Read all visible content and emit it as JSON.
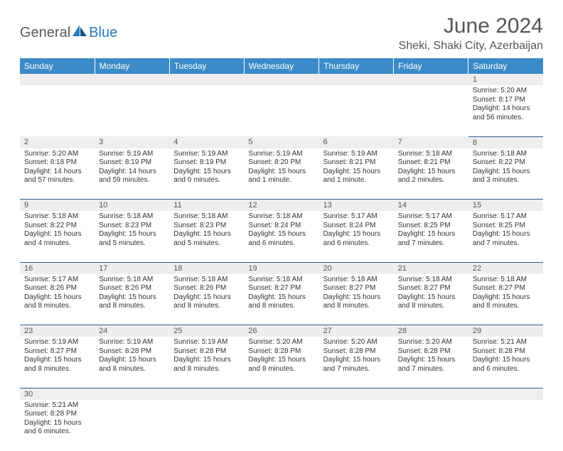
{
  "brand": {
    "part1": "General",
    "part2": "Blue"
  },
  "title": "June 2024",
  "location": "Sheki, Shaki City, Azerbaijan",
  "colors": {
    "header_bg": "#3b8bc8",
    "header_text": "#ffffff",
    "daynum_bg": "#eeeeee",
    "cell_border": "#2a5c8a",
    "brand_gray": "#5a5a5a",
    "brand_blue": "#2a7ab9"
  },
  "weekdays": [
    "Sunday",
    "Monday",
    "Tuesday",
    "Wednesday",
    "Thursday",
    "Friday",
    "Saturday"
  ],
  "weeks": [
    [
      null,
      null,
      null,
      null,
      null,
      null,
      {
        "n": "1",
        "sr": "Sunrise: 5:20 AM",
        "ss": "Sunset: 8:17 PM",
        "dl": "Daylight: 14 hours and 56 minutes."
      }
    ],
    [
      {
        "n": "2",
        "sr": "Sunrise: 5:20 AM",
        "ss": "Sunset: 8:18 PM",
        "dl": "Daylight: 14 hours and 57 minutes."
      },
      {
        "n": "3",
        "sr": "Sunrise: 5:19 AM",
        "ss": "Sunset: 8:19 PM",
        "dl": "Daylight: 14 hours and 59 minutes."
      },
      {
        "n": "4",
        "sr": "Sunrise: 5:19 AM",
        "ss": "Sunset: 8:19 PM",
        "dl": "Daylight: 15 hours and 0 minutes."
      },
      {
        "n": "5",
        "sr": "Sunrise: 5:19 AM",
        "ss": "Sunset: 8:20 PM",
        "dl": "Daylight: 15 hours and 1 minute."
      },
      {
        "n": "6",
        "sr": "Sunrise: 5:19 AM",
        "ss": "Sunset: 8:21 PM",
        "dl": "Daylight: 15 hours and 1 minute."
      },
      {
        "n": "7",
        "sr": "Sunrise: 5:18 AM",
        "ss": "Sunset: 8:21 PM",
        "dl": "Daylight: 15 hours and 2 minutes."
      },
      {
        "n": "8",
        "sr": "Sunrise: 5:18 AM",
        "ss": "Sunset: 8:22 PM",
        "dl": "Daylight: 15 hours and 3 minutes."
      }
    ],
    [
      {
        "n": "9",
        "sr": "Sunrise: 5:18 AM",
        "ss": "Sunset: 8:22 PM",
        "dl": "Daylight: 15 hours and 4 minutes."
      },
      {
        "n": "10",
        "sr": "Sunrise: 5:18 AM",
        "ss": "Sunset: 8:23 PM",
        "dl": "Daylight: 15 hours and 5 minutes."
      },
      {
        "n": "11",
        "sr": "Sunrise: 5:18 AM",
        "ss": "Sunset: 8:23 PM",
        "dl": "Daylight: 15 hours and 5 minutes."
      },
      {
        "n": "12",
        "sr": "Sunrise: 5:18 AM",
        "ss": "Sunset: 8:24 PM",
        "dl": "Daylight: 15 hours and 6 minutes."
      },
      {
        "n": "13",
        "sr": "Sunrise: 5:17 AM",
        "ss": "Sunset: 8:24 PM",
        "dl": "Daylight: 15 hours and 6 minutes."
      },
      {
        "n": "14",
        "sr": "Sunrise: 5:17 AM",
        "ss": "Sunset: 8:25 PM",
        "dl": "Daylight: 15 hours and 7 minutes."
      },
      {
        "n": "15",
        "sr": "Sunrise: 5:17 AM",
        "ss": "Sunset: 8:25 PM",
        "dl": "Daylight: 15 hours and 7 minutes."
      }
    ],
    [
      {
        "n": "16",
        "sr": "Sunrise: 5:17 AM",
        "ss": "Sunset: 8:26 PM",
        "dl": "Daylight: 15 hours and 8 minutes."
      },
      {
        "n": "17",
        "sr": "Sunrise: 5:18 AM",
        "ss": "Sunset: 8:26 PM",
        "dl": "Daylight: 15 hours and 8 minutes."
      },
      {
        "n": "18",
        "sr": "Sunrise: 5:18 AM",
        "ss": "Sunset: 8:26 PM",
        "dl": "Daylight: 15 hours and 8 minutes."
      },
      {
        "n": "19",
        "sr": "Sunrise: 5:18 AM",
        "ss": "Sunset: 8:27 PM",
        "dl": "Daylight: 15 hours and 8 minutes."
      },
      {
        "n": "20",
        "sr": "Sunrise: 5:18 AM",
        "ss": "Sunset: 8:27 PM",
        "dl": "Daylight: 15 hours and 8 minutes."
      },
      {
        "n": "21",
        "sr": "Sunrise: 5:18 AM",
        "ss": "Sunset: 8:27 PM",
        "dl": "Daylight: 15 hours and 8 minutes."
      },
      {
        "n": "22",
        "sr": "Sunrise: 5:18 AM",
        "ss": "Sunset: 8:27 PM",
        "dl": "Daylight: 15 hours and 8 minutes."
      }
    ],
    [
      {
        "n": "23",
        "sr": "Sunrise: 5:19 AM",
        "ss": "Sunset: 8:27 PM",
        "dl": "Daylight: 15 hours and 8 minutes."
      },
      {
        "n": "24",
        "sr": "Sunrise: 5:19 AM",
        "ss": "Sunset: 8:28 PM",
        "dl": "Daylight: 15 hours and 8 minutes."
      },
      {
        "n": "25",
        "sr": "Sunrise: 5:19 AM",
        "ss": "Sunset: 8:28 PM",
        "dl": "Daylight: 15 hours and 8 minutes."
      },
      {
        "n": "26",
        "sr": "Sunrise: 5:20 AM",
        "ss": "Sunset: 8:28 PM",
        "dl": "Daylight: 15 hours and 8 minutes."
      },
      {
        "n": "27",
        "sr": "Sunrise: 5:20 AM",
        "ss": "Sunset: 8:28 PM",
        "dl": "Daylight: 15 hours and 7 minutes."
      },
      {
        "n": "28",
        "sr": "Sunrise: 5:20 AM",
        "ss": "Sunset: 8:28 PM",
        "dl": "Daylight: 15 hours and 7 minutes."
      },
      {
        "n": "29",
        "sr": "Sunrise: 5:21 AM",
        "ss": "Sunset: 8:28 PM",
        "dl": "Daylight: 15 hours and 6 minutes."
      }
    ],
    [
      {
        "n": "30",
        "sr": "Sunrise: 5:21 AM",
        "ss": "Sunset: 8:28 PM",
        "dl": "Daylight: 15 hours and 6 minutes."
      },
      null,
      null,
      null,
      null,
      null,
      null
    ]
  ]
}
